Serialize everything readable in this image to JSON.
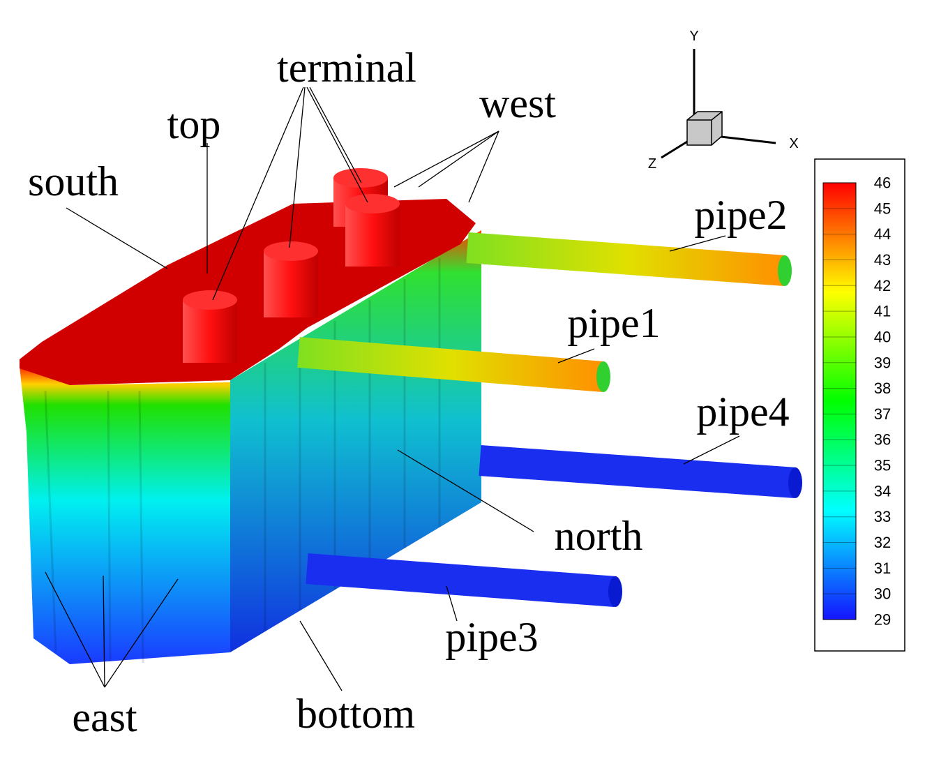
{
  "labels": {
    "terminal": "terminal",
    "top": "top",
    "south": "south",
    "west": "west",
    "pipe2": "pipe2",
    "pipe1": "pipe1",
    "pipe4": "pipe4",
    "north": "north",
    "pipe3": "pipe3",
    "bottom": "bottom",
    "east": "east"
  },
  "axes": {
    "x": "X",
    "y": "Y",
    "z": "Z"
  },
  "colorbar": {
    "range": [
      29,
      46
    ],
    "ticks": [
      29,
      30,
      31,
      32,
      33,
      34,
      35,
      36,
      37,
      38,
      39,
      40,
      41,
      42,
      43,
      44,
      45,
      46
    ],
    "colors": [
      "#1414ff",
      "#00ffff",
      "#00ff00",
      "#ffff00",
      "#ff0000"
    ]
  }
}
